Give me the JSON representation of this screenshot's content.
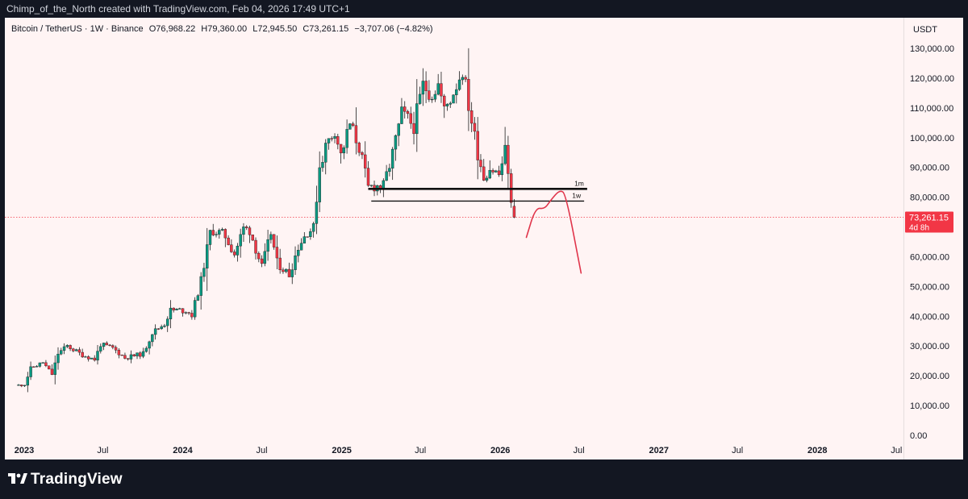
{
  "header": {
    "credit": "Chimp_of_the_North created with TradingView.com, Feb 04, 2026 17:49 UTC+1"
  },
  "legend": {
    "symbol": "Bitcoin / TetherUS · 1W · Binance",
    "open": "O76,968.22",
    "high": "H79,360.00",
    "low": "L72,945.50",
    "close": "C73,261.15",
    "change": "−3,707.06 (−4.82%)"
  },
  "price_scale": {
    "currency": "USDT",
    "last_price_label": "73,261.15",
    "countdown_label": "4d 8h"
  },
  "footer": {
    "brand": "TradingView"
  },
  "colors": {
    "up": "#089981",
    "down": "#f23645",
    "background": "#fff4f4",
    "chrome": "#131722",
    "annotation": "#e0344a",
    "price_line": "#f23645"
  },
  "chart_data": {
    "type": "candlestick",
    "title": "",
    "xlabel": "",
    "ylabel": "",
    "ylim": [
      0,
      135000
    ],
    "grid": false,
    "y_ticks": [
      0,
      10000,
      20000,
      30000,
      40000,
      50000,
      60000,
      70000,
      80000,
      90000,
      100000,
      110000,
      120000,
      130000
    ],
    "y_tick_labels": [
      "0.00",
      "10,000.00",
      "20,000.00",
      "30,000.00",
      "40,000.00",
      "50,000.00",
      "60,000.00",
      "70,000.00",
      "80,000.00",
      "90,000.00",
      "100,000.00",
      "110,000.00",
      "120,000.00",
      "130,000.00"
    ],
    "x_ticks": [
      {
        "label": "2023",
        "date": "2023-01-01",
        "bold": true
      },
      {
        "label": "Jul",
        "date": "2023-07-01",
        "bold": false
      },
      {
        "label": "2024",
        "date": "2024-01-01",
        "bold": true
      },
      {
        "label": "Jul",
        "date": "2024-07-01",
        "bold": false
      },
      {
        "label": "2025",
        "date": "2025-01-01",
        "bold": true
      },
      {
        "label": "Jul",
        "date": "2025-07-01",
        "bold": false
      },
      {
        "label": "2026",
        "date": "2026-01-01",
        "bold": true
      },
      {
        "label": "Jul",
        "date": "2026-07-01",
        "bold": false
      },
      {
        "label": "2027",
        "date": "2027-01-01",
        "bold": true
      },
      {
        "label": "Jul",
        "date": "2027-07-01",
        "bold": false
      },
      {
        "label": "2028",
        "date": "2028-01-01",
        "bold": true
      },
      {
        "label": "Jul",
        "date": "2028-07-01",
        "bold": false
      }
    ],
    "series": [
      {
        "name": "BTCUSDT",
        "interval": "1W",
        "anchors": [
          [
            "2022-12-19",
            16800
          ],
          [
            "2023-01-02",
            17100
          ],
          [
            "2023-01-16",
            22500
          ],
          [
            "2023-02-13",
            24500
          ],
          [
            "2023-03-06",
            20500
          ],
          [
            "2023-03-20",
            27500
          ],
          [
            "2023-04-10",
            30000
          ],
          [
            "2023-05-15",
            27000
          ],
          [
            "2023-06-12",
            25500
          ],
          [
            "2023-06-26",
            30500
          ],
          [
            "2023-07-24",
            29300
          ],
          [
            "2023-08-21",
            26000
          ],
          [
            "2023-10-02",
            27500
          ],
          [
            "2023-10-23",
            34500
          ],
          [
            "2023-11-20",
            37500
          ],
          [
            "2023-12-04",
            42000
          ],
          [
            "2024-01-08",
            42000
          ],
          [
            "2024-01-22",
            40500
          ],
          [
            "2024-02-12",
            52000
          ],
          [
            "2024-03-04",
            68000
          ],
          [
            "2024-03-11",
            69000
          ],
          [
            "2024-04-08",
            67000
          ],
          [
            "2024-04-29",
            61000
          ],
          [
            "2024-05-20",
            69500
          ],
          [
            "2024-06-03",
            69000
          ],
          [
            "2024-07-01",
            56500
          ],
          [
            "2024-07-22",
            68000
          ],
          [
            "2024-08-05",
            58000
          ],
          [
            "2024-09-02",
            54000
          ],
          [
            "2024-09-23",
            63500
          ],
          [
            "2024-10-14",
            68500
          ],
          [
            "2024-10-28",
            69500
          ],
          [
            "2024-11-11",
            90500
          ],
          [
            "2024-11-25",
            97000
          ],
          [
            "2024-12-16",
            103000
          ],
          [
            "2024-12-30",
            94000
          ],
          [
            "2025-01-20",
            104500
          ],
          [
            "2025-02-10",
            97000
          ],
          [
            "2025-03-03",
            83000
          ],
          [
            "2025-03-17",
            84000
          ],
          [
            "2025-04-07",
            83500
          ],
          [
            "2025-04-28",
            94500
          ],
          [
            "2025-05-19",
            108000
          ],
          [
            "2025-06-16",
            104000
          ],
          [
            "2025-07-07",
            117500
          ],
          [
            "2025-07-28",
            115000
          ],
          [
            "2025-08-11",
            118000
          ],
          [
            "2025-08-25",
            109000
          ],
          [
            "2025-09-15",
            115500
          ],
          [
            "2025-10-06",
            123000
          ],
          [
            "2025-10-20",
            111000
          ],
          [
            "2025-11-10",
            95000
          ],
          [
            "2025-11-24",
            87000
          ],
          [
            "2025-12-08",
            90000
          ],
          [
            "2025-12-29",
            87500
          ],
          [
            "2026-01-12",
            95500
          ],
          [
            "2026-01-19",
            89500
          ],
          [
            "2026-01-26",
            77000
          ],
          [
            "2026-02-02",
            73261.15
          ]
        ],
        "last_candle": {
          "date": "2026-02-02",
          "open": 76968.22,
          "high": 79360.0,
          "low": 72945.5,
          "close": 73261.15
        }
      }
    ],
    "annotations": [
      {
        "type": "horizontal_line",
        "label": "1m",
        "price": 82800,
        "from": "2025-03-03",
        "to": "2026-07-20",
        "weight": "thick"
      },
      {
        "type": "horizontal_line",
        "label": "1w",
        "price": 78700,
        "from": "2025-03-10",
        "to": "2026-07-13",
        "weight": "thin"
      },
      {
        "type": "freehand_projection",
        "color": "#e0344a",
        "points": [
          [
            "2026-03-02",
            66500
          ],
          [
            "2026-03-23",
            76500
          ],
          [
            "2026-04-13",
            76000
          ],
          [
            "2026-04-27",
            79000
          ],
          [
            "2026-05-18",
            82500
          ],
          [
            "2026-06-01",
            81000
          ],
          [
            "2026-07-06",
            54500
          ]
        ]
      }
    ]
  }
}
